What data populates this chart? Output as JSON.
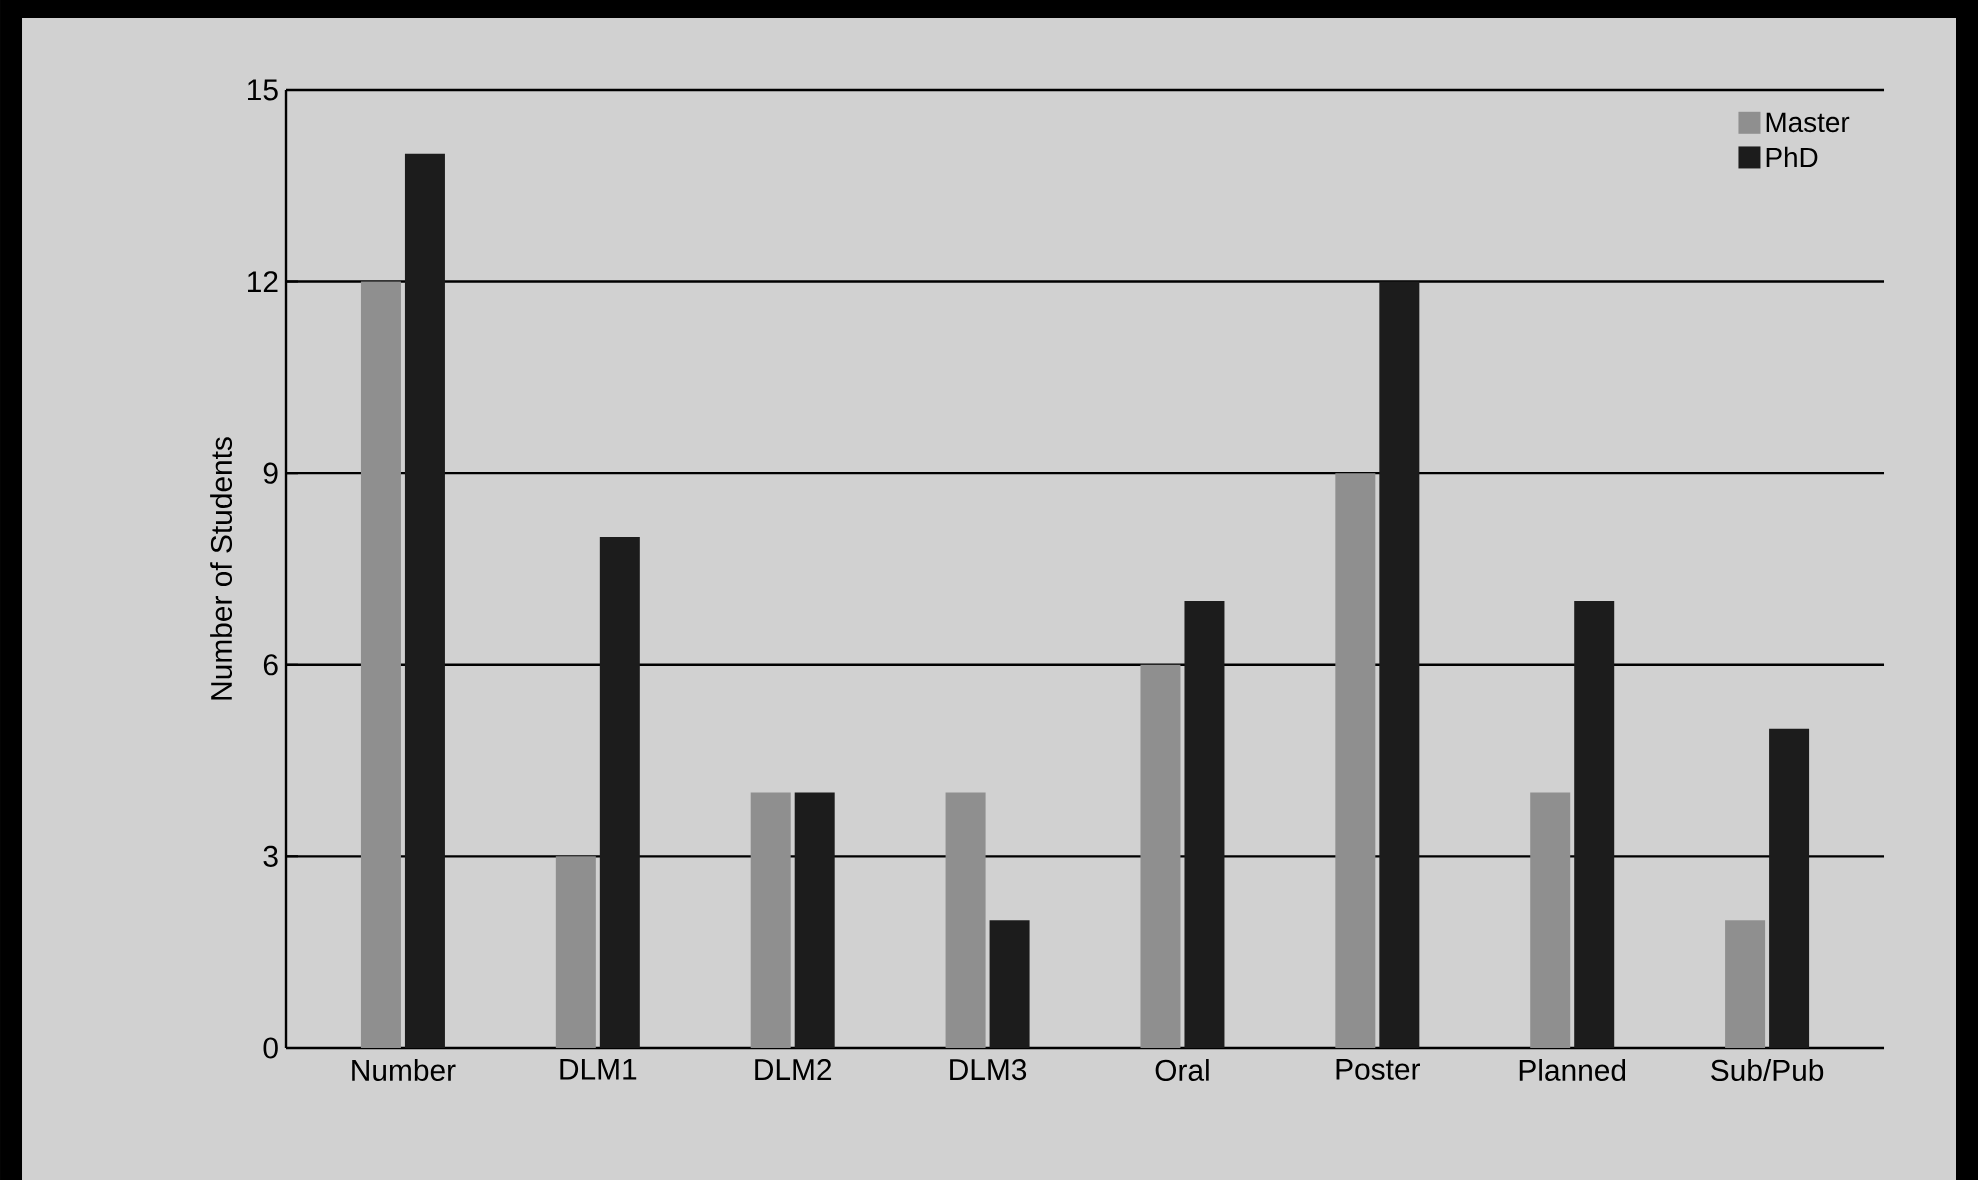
{
  "chart_data": {
    "type": "bar",
    "ylabel": "Number of Students",
    "categories": [
      "Number",
      "DLM1",
      "DLM2",
      "DLM3",
      "Oral",
      "Poster",
      "Planned",
      "Sub/Pub"
    ],
    "series": [
      {
        "name": "Master",
        "color": "#8f8f8f",
        "values": [
          12,
          3,
          4,
          4,
          6,
          9,
          4,
          2
        ]
      },
      {
        "name": "PhD",
        "color": "#1c1c1c",
        "values": [
          14,
          8,
          4,
          2,
          7,
          12,
          7,
          5
        ]
      }
    ],
    "ylim": [
      0,
      15
    ],
    "yticks": [
      0,
      3,
      6,
      9,
      12,
      15
    ],
    "grid": "y",
    "legend": "top right"
  }
}
